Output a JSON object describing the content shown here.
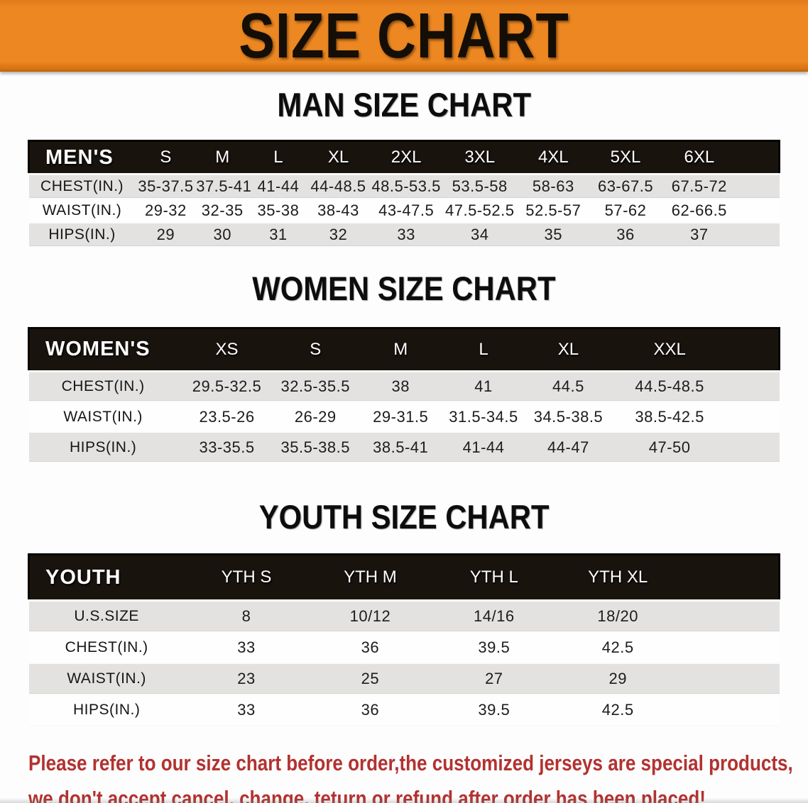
{
  "banner": {
    "title": "SIZE CHART",
    "bg_color": "#EC8722",
    "text_color": "#140E06"
  },
  "sections": [
    {
      "heading": "MAN SIZE CHART",
      "table": {
        "header_label": "MEN'S",
        "columns": [
          "S",
          "M",
          "L",
          "XL",
          "2XL",
          "3XL",
          "4XL",
          "5XL",
          "6XL"
        ],
        "rows": [
          {
            "label": "CHEST(IN.)",
            "values": [
              "35-37.5",
              "37.5-41",
              "41-44",
              "44-48.5",
              "48.5-53.5",
              "53.5-58",
              "58-63",
              "63-67.5",
              "67.5-72"
            ]
          },
          {
            "label": "WAIST(IN.)",
            "values": [
              "29-32",
              "32-35",
              "35-38",
              "38-43",
              "43-47.5",
              "47.5-52.5",
              "52.5-57",
              "57-62",
              "62-66.5"
            ]
          },
          {
            "label": "HIPS(IN.)",
            "values": [
              "29",
              "30",
              "31",
              "32",
              "33",
              "34",
              "35",
              "36",
              "37"
            ]
          }
        ]
      }
    },
    {
      "heading": "WOMEN SIZE CHART",
      "table": {
        "header_label": "WOMEN'S",
        "columns": [
          "XS",
          "S",
          "M",
          "L",
          "XL",
          "XXL"
        ],
        "rows": [
          {
            "label": "CHEST(IN.)",
            "values": [
              "29.5-32.5",
              "32.5-35.5",
              "38",
              "41",
              "44.5",
              "44.5-48.5"
            ]
          },
          {
            "label": "WAIST(IN.)",
            "values": [
              "23.5-26",
              "26-29",
              "29-31.5",
              "31.5-34.5",
              "34.5-38.5",
              "38.5-42.5"
            ]
          },
          {
            "label": "HIPS(IN.)",
            "values": [
              "33-35.5",
              "35.5-38.5",
              "38.5-41",
              "41-44",
              "44-47",
              "47-50"
            ]
          }
        ]
      }
    },
    {
      "heading": "YOUTH SIZE CHART",
      "table": {
        "header_label": "YOUTH",
        "columns": [
          "YTH S",
          "YTH M",
          "YTH L",
          "YTH XL"
        ],
        "rows": [
          {
            "label": "U.S.SIZE",
            "values": [
              "8",
              "10/12",
              "14/16",
              "18/20"
            ]
          },
          {
            "label": "CHEST(IN.)",
            "values": [
              "33",
              "36",
              "39.5",
              "42.5"
            ]
          },
          {
            "label": "WAIST(IN.)",
            "values": [
              "23",
              "25",
              "27",
              "29"
            ]
          },
          {
            "label": "HIPS(IN.)",
            "values": [
              "33",
              "36",
              "39.5",
              "42.5"
            ]
          }
        ]
      }
    }
  ],
  "note": {
    "line1": "Please refer to our size chart before order,the customized jerseys are special products,",
    "line2": "we don't accept cancel, change, teturn or refund after order has been placed!",
    "color": "#B23230"
  },
  "table_colors": {
    "header_bar": "#19130E",
    "row_gray": "#E3E2E0",
    "row_white": "#FEFEFE"
  }
}
